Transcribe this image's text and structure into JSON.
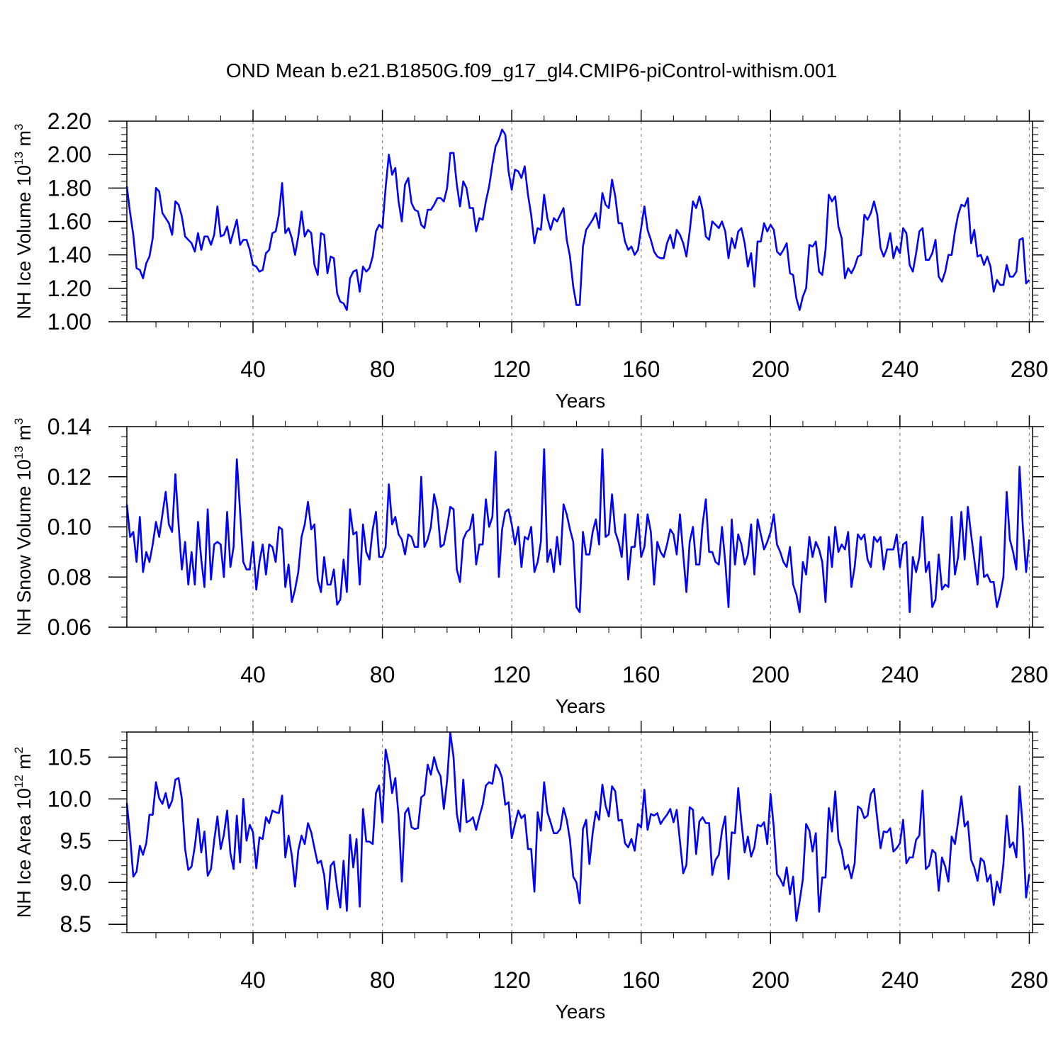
{
  "title": "OND Mean b.e21.B1850G.f09_g17_gl4.CMIP6-piControl-withism.001",
  "colors": {
    "series": "#0000ff",
    "axis": "#000000",
    "grid": "#888888"
  },
  "chart_data": [
    {
      "type": "line",
      "ylabel": "NH Ice Volume 10",
      "ylabel_exp": "13",
      "ylabel_unit": " m",
      "ylabel_unit_exp": "3",
      "xlabel": "Years",
      "xlim": [
        1,
        281
      ],
      "ylim": [
        1.0,
        2.2
      ],
      "xticks": [
        40,
        80,
        120,
        160,
        200,
        240,
        280
      ],
      "yticks": [
        1.0,
        1.2,
        1.4,
        1.6,
        1.8,
        2.0,
        2.2
      ],
      "yticklabels": [
        "1.00",
        "1.20",
        "1.40",
        "1.60",
        "1.80",
        "2.00",
        "2.20"
      ],
      "grid": "vertical dashed at x ticks",
      "series": [
        {
          "values": [
            1.81,
            1.65,
            1.52,
            1.32,
            1.31,
            1.26,
            1.35,
            1.39,
            1.5,
            1.8,
            1.78,
            1.65,
            1.62,
            1.59,
            1.52,
            1.72,
            1.7,
            1.63,
            1.51,
            1.49,
            1.47,
            1.42,
            1.53,
            1.43,
            1.51,
            1.51,
            1.46,
            1.52,
            1.69,
            1.51,
            1.52,
            1.57,
            1.47,
            1.54,
            1.61,
            1.46,
            1.49,
            1.49,
            1.43,
            1.34,
            1.33,
            1.3,
            1.31,
            1.41,
            1.43,
            1.53,
            1.54,
            1.64,
            1.83,
            1.53,
            1.56,
            1.5,
            1.4,
            1.51,
            1.66,
            1.51,
            1.55,
            1.53,
            1.34,
            1.28,
            1.53,
            1.52,
            1.29,
            1.39,
            1.38,
            1.17,
            1.12,
            1.11,
            1.07,
            1.26,
            1.3,
            1.31,
            1.18,
            1.33,
            1.3,
            1.32,
            1.39,
            1.54,
            1.58,
            1.56,
            1.8,
            2.0,
            1.88,
            1.92,
            1.72,
            1.6,
            1.82,
            1.86,
            1.71,
            1.67,
            1.66,
            1.58,
            1.56,
            1.67,
            1.67,
            1.7,
            1.74,
            1.74,
            1.72,
            1.8,
            2.01,
            2.01,
            1.82,
            1.69,
            1.84,
            1.8,
            1.68,
            1.68,
            1.54,
            1.62,
            1.61,
            1.72,
            1.81,
            1.94,
            2.05,
            2.09,
            2.15,
            2.12,
            1.9,
            1.79,
            1.91,
            1.9,
            1.86,
            1.93,
            1.76,
            1.64,
            1.47,
            1.56,
            1.55,
            1.76,
            1.62,
            1.55,
            1.62,
            1.6,
            1.64,
            1.68,
            1.49,
            1.39,
            1.21,
            1.1,
            1.1,
            1.45,
            1.55,
            1.58,
            1.61,
            1.65,
            1.56,
            1.77,
            1.7,
            1.68,
            1.85,
            1.75,
            1.59,
            1.59,
            1.48,
            1.43,
            1.45,
            1.4,
            1.43,
            1.56,
            1.69,
            1.55,
            1.49,
            1.42,
            1.39,
            1.38,
            1.38,
            1.47,
            1.52,
            1.44,
            1.55,
            1.52,
            1.47,
            1.39,
            1.54,
            1.72,
            1.68,
            1.75,
            1.67,
            1.51,
            1.49,
            1.6,
            1.58,
            1.56,
            1.6,
            1.54,
            1.38,
            1.5,
            1.44,
            1.54,
            1.56,
            1.47,
            1.33,
            1.41,
            1.21,
            1.48,
            1.48,
            1.59,
            1.54,
            1.58,
            1.55,
            1.42,
            1.4,
            1.43,
            1.47,
            1.29,
            1.28,
            1.14,
            1.07,
            1.15,
            1.2,
            1.46,
            1.45,
            1.48,
            1.3,
            1.28,
            1.43,
            1.76,
            1.72,
            1.75,
            1.57,
            1.5,
            1.26,
            1.32,
            1.29,
            1.33,
            1.39,
            1.4,
            1.64,
            1.61,
            1.65,
            1.72,
            1.64,
            1.44,
            1.39,
            1.44,
            1.53,
            1.38,
            1.45,
            1.41,
            1.56,
            1.53,
            1.34,
            1.3,
            1.41,
            1.54,
            1.56,
            1.37,
            1.37,
            1.41,
            1.49,
            1.27,
            1.24,
            1.3,
            1.4,
            1.4,
            1.54,
            1.64,
            1.7,
            1.69,
            1.74,
            1.47,
            1.55,
            1.39,
            1.4,
            1.34,
            1.39,
            1.33,
            1.18,
            1.25,
            1.22,
            1.22,
            1.34,
            1.27,
            1.27,
            1.3,
            1.49,
            1.5,
            1.23,
            1.25
          ]
        }
      ]
    },
    {
      "type": "line",
      "ylabel": "NH Snow Volume 10",
      "ylabel_exp": "13",
      "ylabel_unit": " m",
      "ylabel_unit_exp": "3",
      "xlabel": "Years",
      "xlim": [
        1,
        281
      ],
      "ylim": [
        0.06,
        0.14
      ],
      "xticks": [
        40,
        80,
        120,
        160,
        200,
        240,
        280
      ],
      "yticks": [
        0.06,
        0.08,
        0.1,
        0.12,
        0.14
      ],
      "yticklabels": [
        "0.06",
        "0.08",
        "0.10",
        "0.12",
        "0.14"
      ],
      "grid": "vertical dashed at x ticks",
      "series": [
        {
          "values": [
            0.109,
            0.096,
            0.098,
            0.086,
            0.104,
            0.082,
            0.09,
            0.086,
            0.093,
            0.102,
            0.096,
            0.105,
            0.114,
            0.101,
            0.098,
            0.121,
            0.101,
            0.083,
            0.094,
            0.077,
            0.09,
            0.077,
            0.102,
            0.087,
            0.076,
            0.107,
            0.079,
            0.093,
            0.094,
            0.093,
            0.08,
            0.106,
            0.084,
            0.092,
            0.127,
            0.106,
            0.086,
            0.083,
            0.083,
            0.094,
            0.075,
            0.086,
            0.093,
            0.081,
            0.093,
            0.092,
            0.086,
            0.1,
            0.099,
            0.076,
            0.085,
            0.07,
            0.075,
            0.082,
            0.096,
            0.101,
            0.11,
            0.099,
            0.101,
            0.079,
            0.074,
            0.088,
            0.077,
            0.077,
            0.083,
            0.069,
            0.071,
            0.087,
            0.074,
            0.107,
            0.097,
            0.098,
            0.077,
            0.101,
            0.09,
            0.087,
            0.099,
            0.106,
            0.088,
            0.088,
            0.092,
            0.117,
            0.101,
            0.104,
            0.097,
            0.095,
            0.089,
            0.097,
            0.096,
            0.092,
            0.092,
            0.12,
            0.092,
            0.095,
            0.1,
            0.113,
            0.107,
            0.092,
            0.093,
            0.1,
            0.108,
            0.107,
            0.083,
            0.078,
            0.095,
            0.098,
            0.099,
            0.105,
            0.085,
            0.093,
            0.093,
            0.111,
            0.1,
            0.104,
            0.13,
            0.08,
            0.099,
            0.106,
            0.107,
            0.101,
            0.093,
            0.1,
            0.084,
            0.096,
            0.095,
            0.1,
            0.082,
            0.086,
            0.094,
            0.131,
            0.086,
            0.091,
            0.082,
            0.096,
            0.085,
            0.109,
            0.105,
            0.099,
            0.094,
            0.068,
            0.066,
            0.098,
            0.089,
            0.089,
            0.098,
            0.103,
            0.093,
            0.131,
            0.096,
            0.097,
            0.113,
            0.098,
            0.094,
            0.088,
            0.105,
            0.079,
            0.092,
            0.092,
            0.105,
            0.088,
            0.092,
            0.105,
            0.098,
            0.077,
            0.094,
            0.09,
            0.088,
            0.093,
            0.099,
            0.097,
            0.089,
            0.105,
            0.089,
            0.074,
            0.094,
            0.1,
            0.085,
            0.085,
            0.101,
            0.111,
            0.09,
            0.09,
            0.086,
            0.085,
            0.1,
            0.086,
            0.068,
            0.103,
            0.085,
            0.097,
            0.093,
            0.085,
            0.089,
            0.101,
            0.081,
            0.103,
            0.097,
            0.091,
            0.094,
            0.098,
            0.105,
            0.093,
            0.09,
            0.086,
            0.084,
            0.092,
            0.077,
            0.073,
            0.066,
            0.086,
            0.081,
            0.096,
            0.088,
            0.094,
            0.091,
            0.086,
            0.07,
            0.096,
            0.084,
            0.1,
            0.09,
            0.093,
            0.091,
            0.098,
            0.076,
            0.084,
            0.097,
            0.095,
            0.097,
            0.087,
            0.084,
            0.096,
            0.094,
            0.096,
            0.083,
            0.091,
            0.091,
            0.091,
            0.097,
            0.084,
            0.093,
            0.094,
            0.066,
            0.088,
            0.082,
            0.088,
            0.104,
            0.082,
            0.086,
            0.068,
            0.071,
            0.089,
            0.075,
            0.077,
            0.076,
            0.104,
            0.081,
            0.088,
            0.106,
            0.087,
            0.108,
            0.097,
            0.087,
            0.077,
            0.096,
            0.08,
            0.081,
            0.078,
            0.078,
            0.068,
            0.073,
            0.08,
            0.114,
            0.095,
            0.09,
            0.083,
            0.124,
            0.1,
            0.082,
            0.095
          ]
        }
      ]
    },
    {
      "type": "line",
      "ylabel": "NH Ice Area 10",
      "ylabel_exp": "12",
      "ylabel_unit": " m",
      "ylabel_unit_exp": "2",
      "xlabel": "Years",
      "xlim": [
        1,
        281
      ],
      "ylim": [
        8.4,
        10.8
      ],
      "xticks": [
        40,
        80,
        120,
        160,
        200,
        240,
        280
      ],
      "yticks": [
        8.5,
        9.0,
        9.5,
        10.0,
        10.5
      ],
      "yticklabels": [
        "8.5",
        "9.0",
        "9.5",
        "10.0",
        "10.5"
      ],
      "grid": "vertical dashed at x ticks",
      "series": [
        {
          "values": [
            9.95,
            9.55,
            9.07,
            9.13,
            9.44,
            9.33,
            9.47,
            9.81,
            9.81,
            10.2,
            10.01,
            9.94,
            10.07,
            9.89,
            9.98,
            10.23,
            10.25,
            10.0,
            9.4,
            9.15,
            9.19,
            9.43,
            9.76,
            9.36,
            9.61,
            9.08,
            9.16,
            9.5,
            9.79,
            9.4,
            9.57,
            9.86,
            9.35,
            9.16,
            9.8,
            9.24,
            10.0,
            9.5,
            9.69,
            9.6,
            9.17,
            9.54,
            9.52,
            9.78,
            9.71,
            9.86,
            9.84,
            9.83,
            10.04,
            9.3,
            9.56,
            9.32,
            8.95,
            9.38,
            9.56,
            9.46,
            9.71,
            9.6,
            9.41,
            9.23,
            9.26,
            9.09,
            8.68,
            9.2,
            9.25,
            8.93,
            8.7,
            9.26,
            8.66,
            9.57,
            9.18,
            9.52,
            8.71,
            9.88,
            9.49,
            9.49,
            9.46,
            10.07,
            10.16,
            9.72,
            10.59,
            10.4,
            10.07,
            10.25,
            9.8,
            9.01,
            9.83,
            9.89,
            9.66,
            9.64,
            9.65,
            10.02,
            10.05,
            10.41,
            10.29,
            10.5,
            10.35,
            10.27,
            9.88,
            10.22,
            10.79,
            10.5,
            9.82,
            9.61,
            10.23,
            9.72,
            9.74,
            9.78,
            9.63,
            9.79,
            9.93,
            10.16,
            10.2,
            10.18,
            10.41,
            10.36,
            10.25,
            9.93,
            9.96,
            9.53,
            9.7,
            9.86,
            9.77,
            9.81,
            9.4,
            9.4,
            8.89,
            9.84,
            9.62,
            10.2,
            9.84,
            9.72,
            9.59,
            9.59,
            9.64,
            9.89,
            9.75,
            9.51,
            9.07,
            9.0,
            8.75,
            9.64,
            9.75,
            9.22,
            9.59,
            9.85,
            9.75,
            10.17,
            9.92,
            9.79,
            10.15,
            10.09,
            9.74,
            9.75,
            9.47,
            9.42,
            9.52,
            9.38,
            9.7,
            9.66,
            10.11,
            9.63,
            9.82,
            9.8,
            9.83,
            9.7,
            9.76,
            9.81,
            9.88,
            9.72,
            9.87,
            9.49,
            9.11,
            9.21,
            9.9,
            9.87,
            9.34,
            9.73,
            9.78,
            9.71,
            9.71,
            9.09,
            9.27,
            9.33,
            9.62,
            9.79,
            9.04,
            9.6,
            9.59,
            10.13,
            9.72,
            9.36,
            9.55,
            9.31,
            9.42,
            9.69,
            9.67,
            9.72,
            9.46,
            10.06,
            9.66,
            9.1,
            9.04,
            8.96,
            9.18,
            8.86,
            9.07,
            8.54,
            8.78,
            9.04,
            9.7,
            9.62,
            9.37,
            9.59,
            8.65,
            9.06,
            9.06,
            9.89,
            9.61,
            10.09,
            9.51,
            9.39,
            9.16,
            9.21,
            9.05,
            9.23,
            9.91,
            9.88,
            9.77,
            9.8,
            10.06,
            10.12,
            9.76,
            9.41,
            9.61,
            9.6,
            9.65,
            9.37,
            9.41,
            9.47,
            9.75,
            9.23,
            9.3,
            9.3,
            9.51,
            9.56,
            10.1,
            9.16,
            9.2,
            9.39,
            9.35,
            8.9,
            9.3,
            9.19,
            9.01,
            9.55,
            9.46,
            9.73,
            10.03,
            9.67,
            9.73,
            9.27,
            9.18,
            9.02,
            9.29,
            9.25,
            9.01,
            9.09,
            8.73,
            9.01,
            8.88,
            9.22,
            9.8,
            9.42,
            9.48,
            9.3,
            10.15,
            9.65,
            8.82,
            9.1
          ]
        }
      ]
    }
  ]
}
